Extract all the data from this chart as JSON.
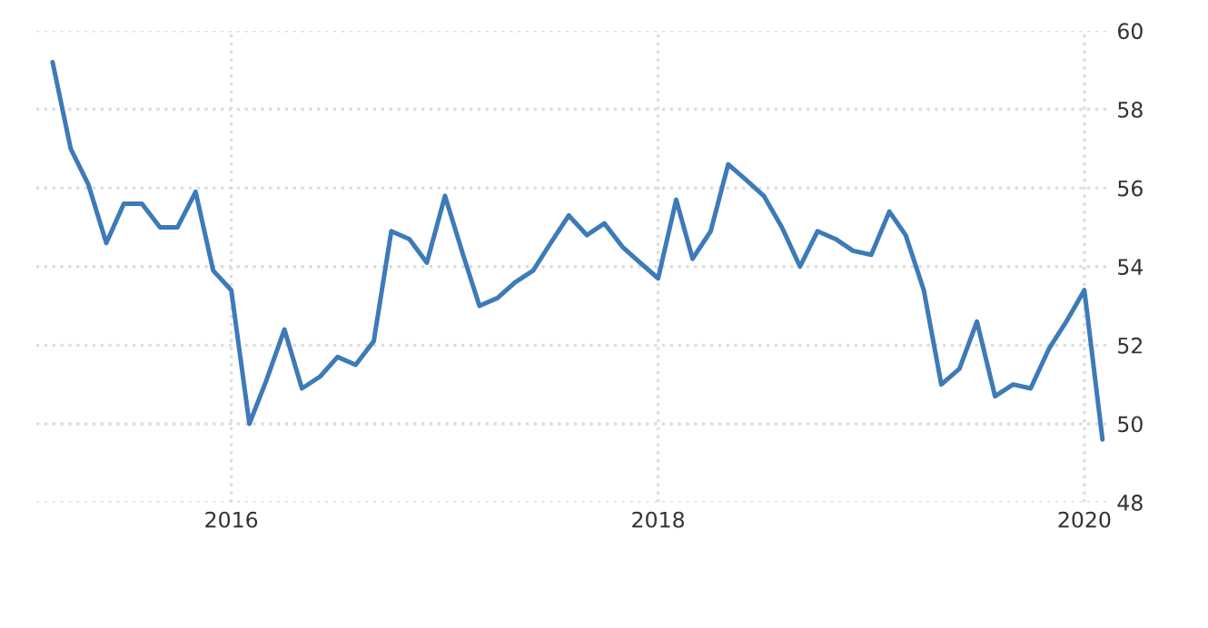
{
  "chart_data": {
    "type": "line",
    "x": [
      "2015-03",
      "2015-04",
      "2015-05",
      "2015-06",
      "2015-07",
      "2015-08",
      "2015-09",
      "2015-10",
      "2015-11",
      "2015-12",
      "2016-01",
      "2016-02",
      "2016-03",
      "2016-04",
      "2016-05",
      "2016-06",
      "2016-07",
      "2016-08",
      "2016-09",
      "2016-10",
      "2016-11",
      "2016-12",
      "2017-01",
      "2017-02",
      "2017-03",
      "2017-04",
      "2017-05",
      "2017-06",
      "2017-07",
      "2017-08",
      "2017-09",
      "2017-10",
      "2017-11",
      "2017-12",
      "2018-01",
      "2018-02",
      "2018-03",
      "2018-04",
      "2018-05",
      "2018-06",
      "2018-07",
      "2018-08",
      "2018-09",
      "2018-10",
      "2018-11",
      "2018-12",
      "2019-01",
      "2019-02",
      "2019-03",
      "2019-04",
      "2019-05",
      "2019-06",
      "2019-07",
      "2019-08",
      "2019-09",
      "2019-10",
      "2019-11",
      "2019-12",
      "2020-01",
      "2020-02"
    ],
    "series": [
      {
        "color": "#3d7ab8",
        "values": [
          59.2,
          57.0,
          56.1,
          54.6,
          55.6,
          55.6,
          55.0,
          55.0,
          55.9,
          53.9,
          53.4,
          50.0,
          51.1,
          52.4,
          50.9,
          51.2,
          51.7,
          51.5,
          52.1,
          54.9,
          54.7,
          54.1,
          55.8,
          54.3,
          53.0,
          53.2,
          53.6,
          53.9,
          54.6,
          55.3,
          54.8,
          55.1,
          54.5,
          54.1,
          53.7,
          55.7,
          54.2,
          54.9,
          56.6,
          56.2,
          55.8,
          55.0,
          54.0,
          54.9,
          54.7,
          54.4,
          54.3,
          55.4,
          54.8,
          53.4,
          51.0,
          51.4,
          52.6,
          50.7,
          51.0,
          50.9,
          51.9,
          52.6,
          53.4,
          49.6
        ]
      }
    ],
    "xlim": [
      "2015-02",
      "2020-02-10"
    ],
    "xticks": [
      "2016",
      "2018",
      "2020"
    ],
    "ylim": [
      48,
      60
    ],
    "yticks": [
      48,
      50,
      52,
      54,
      56,
      58,
      60
    ],
    "grid": true,
    "line_style": "solid",
    "marker": "none",
    "legend": false
  }
}
